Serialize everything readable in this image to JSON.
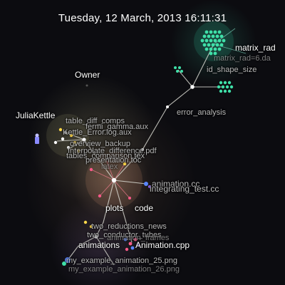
{
  "header": {
    "datetime": "Tuesday, 12 March, 2013 16:11:31"
  },
  "users": [
    {
      "name": "Owner"
    },
    {
      "name": "JuliaKettle"
    }
  ],
  "directories": [
    {
      "name": "error_analysis"
    },
    {
      "name": "plots"
    },
    {
      "name": "code"
    },
    {
      "name": "animations"
    }
  ],
  "files": [
    {
      "name": "matrix_rad"
    },
    {
      "name": "matrix_rad=6.da"
    },
    {
      "name": "id_shape_size"
    },
    {
      "name": "Interpolate_difference.pdf"
    },
    {
      "name": "tables_comparison.tex"
    },
    {
      "name": "presentation.toc"
    },
    {
      "name": "animation.cc"
    },
    {
      "name": "integrating_test.cc"
    },
    {
      "name": "two_conductor_tubes"
    },
    {
      "name": "Animation.cpp"
    },
    {
      "name": "my_example_animation_25.png"
    }
  ],
  "overlap_labels": [
    {
      "name": "table_diff_comps"
    },
    {
      "name": "fermi_gamma.aux"
    },
    {
      "name": "Kettle_Error.log.aux"
    },
    {
      "name": "overview_backup"
    },
    {
      "name": "latex"
    },
    {
      "name": "two_reductions_news"
    },
    {
      "name": "animation_frames"
    },
    {
      "name": "my_example_animation_26.png"
    }
  ],
  "colors": {
    "background": "#0c0c10",
    "edge": "#d8d8d0",
    "edge_teal": "#7fd8c0",
    "edge_pink": "#e87a8a",
    "node_teal": "#3fe0a8",
    "node_blue": "#5a86ff",
    "node_pink": "#ff5a8a",
    "node_yellow": "#ffd84a",
    "node_purple": "#9a6aff"
  }
}
